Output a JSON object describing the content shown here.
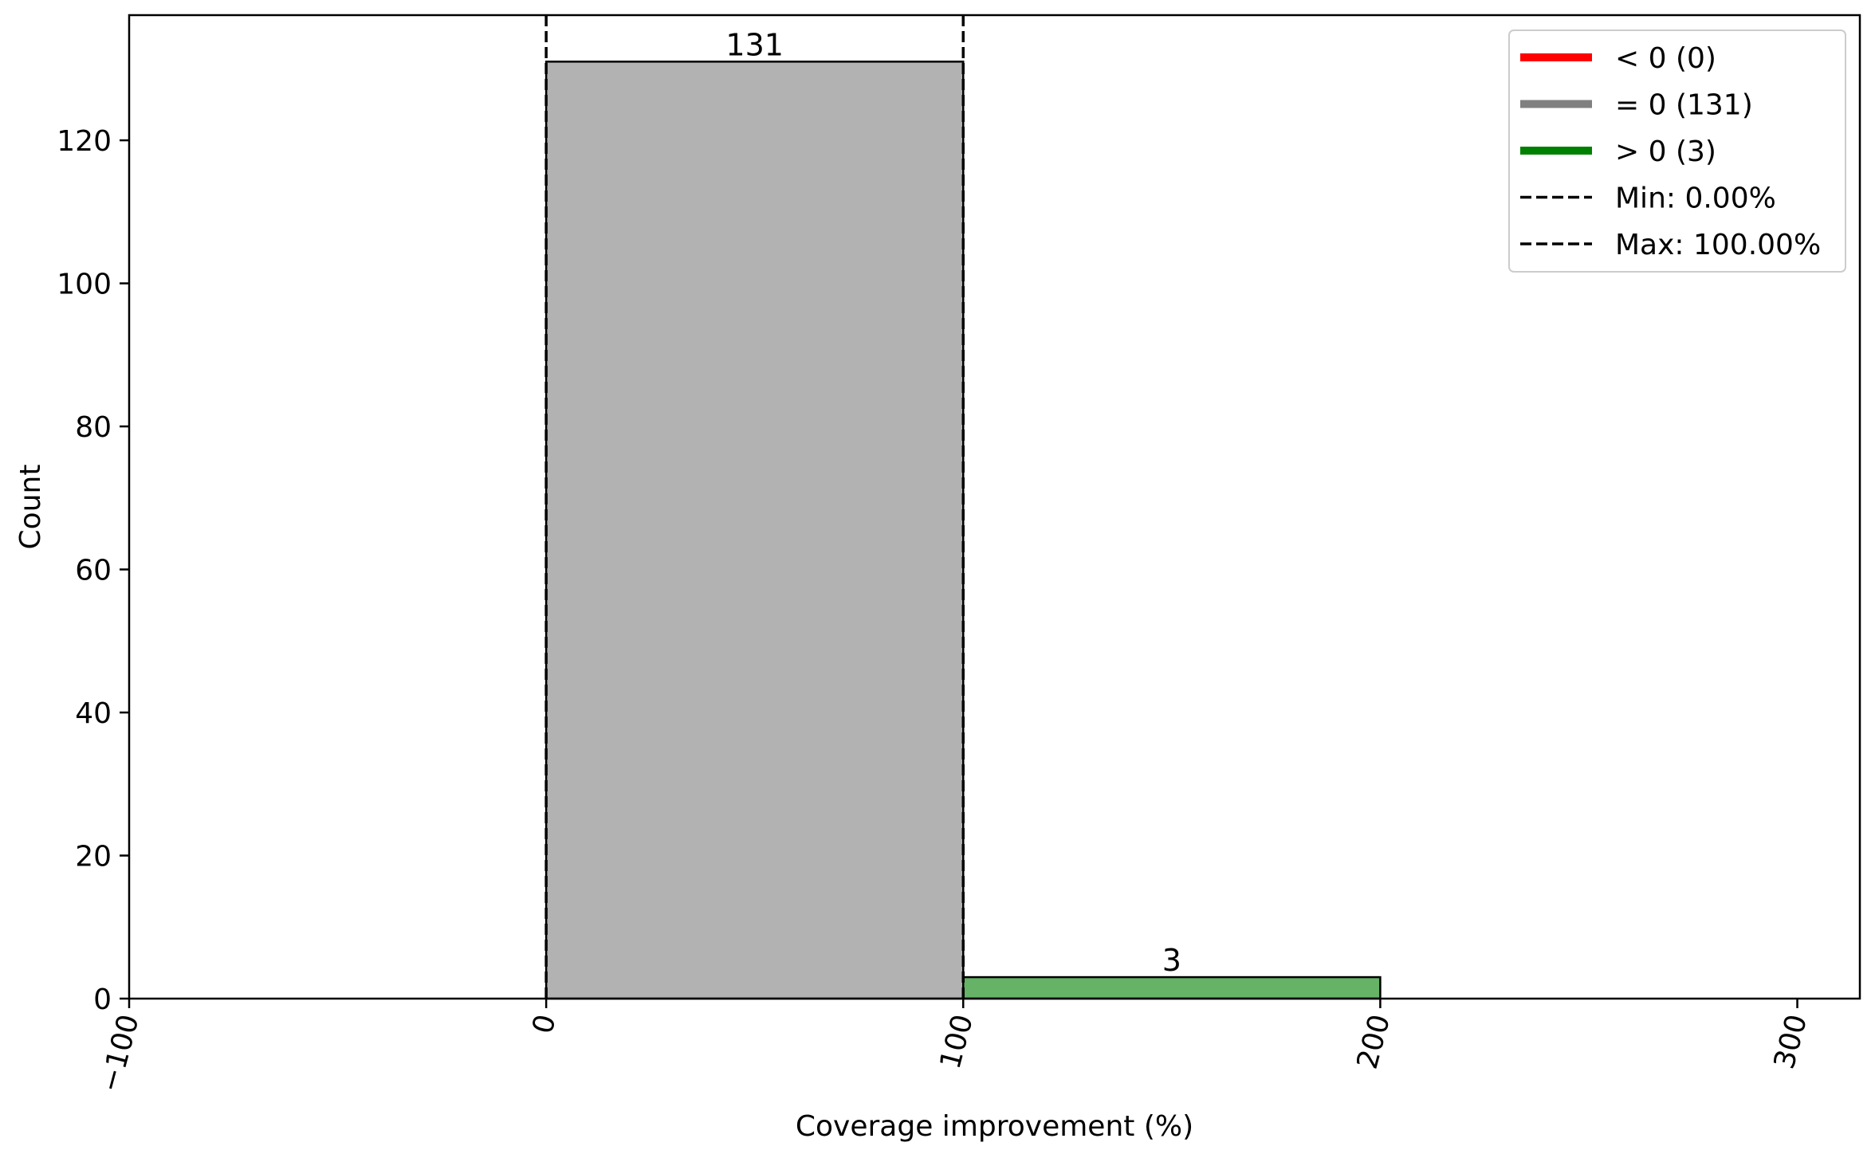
{
  "chart_data": {
    "type": "bar",
    "title": "",
    "xlabel": "Coverage improvement (%)",
    "ylabel": "Count",
    "xlim": [
      -100,
      315
    ],
    "ylim": [
      0,
      137.5
    ],
    "x_ticks": [
      -100,
      0,
      100,
      200,
      300
    ],
    "x_tick_labels": [
      "−100",
      "0",
      "100",
      "200",
      "300"
    ],
    "y_ticks": [
      0,
      20,
      40,
      60,
      80,
      100,
      120
    ],
    "y_tick_labels": [
      "0",
      "20",
      "40",
      "60",
      "80",
      "100",
      "120"
    ],
    "grid": false,
    "bins": [
      {
        "x_start": 0,
        "x_end": 100,
        "count": 131,
        "label": "131",
        "group": "equal_zero",
        "color": "#b2b2b2"
      },
      {
        "x_start": 100,
        "x_end": 200,
        "count": 3,
        "label": "3",
        "group": "greater_than_zero",
        "color": "#66b266"
      }
    ],
    "reference_lines": [
      {
        "name": "Min: 0.00%",
        "x": 0,
        "style": "dashed",
        "color": "#000000"
      },
      {
        "name": "Max: 100.00%",
        "x": 100,
        "style": "dashed",
        "color": "#000000"
      }
    ],
    "legend": {
      "placement": "top-right",
      "entries": [
        {
          "label": "< 0 (0)",
          "color": "#ff0000",
          "style": "solid-thick"
        },
        {
          "label": "= 0 (131)",
          "color": "#808080",
          "style": "solid-thick"
        },
        {
          "label": "> 0 (3)",
          "color": "#008000",
          "style": "solid-thick"
        },
        {
          "label": "Min: 0.00%",
          "color": "#000000",
          "style": "dashed"
        },
        {
          "label": "Max: 100.00%",
          "color": "#000000",
          "style": "dashed"
        }
      ]
    }
  }
}
